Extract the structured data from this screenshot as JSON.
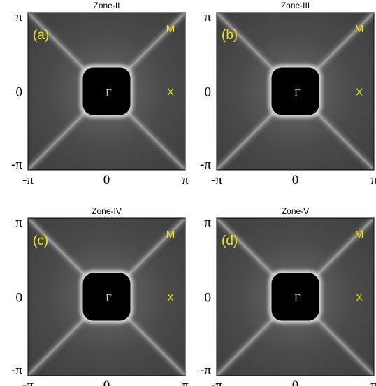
{
  "panels": [
    {
      "title": "Zone-II",
      "label": "(a)",
      "points": [
        "M",
        "Γ",
        "X"
      ]
    },
    {
      "title": "Zone-III",
      "label": "(b)",
      "points": [
        "M",
        "Γ",
        "X"
      ]
    },
    {
      "title": "Zone-IV",
      "label": "(c)",
      "points": [
        "M",
        "Γ",
        "X"
      ]
    },
    {
      "title": "Zone-V",
      "label": "(d)",
      "points": [
        "M",
        "Γ",
        "X"
      ]
    }
  ],
  "axis": {
    "xtick_labels": [
      "-π",
      "0",
      "π"
    ],
    "ytick_labels": [
      "π",
      "0",
      "-π"
    ]
  }
}
